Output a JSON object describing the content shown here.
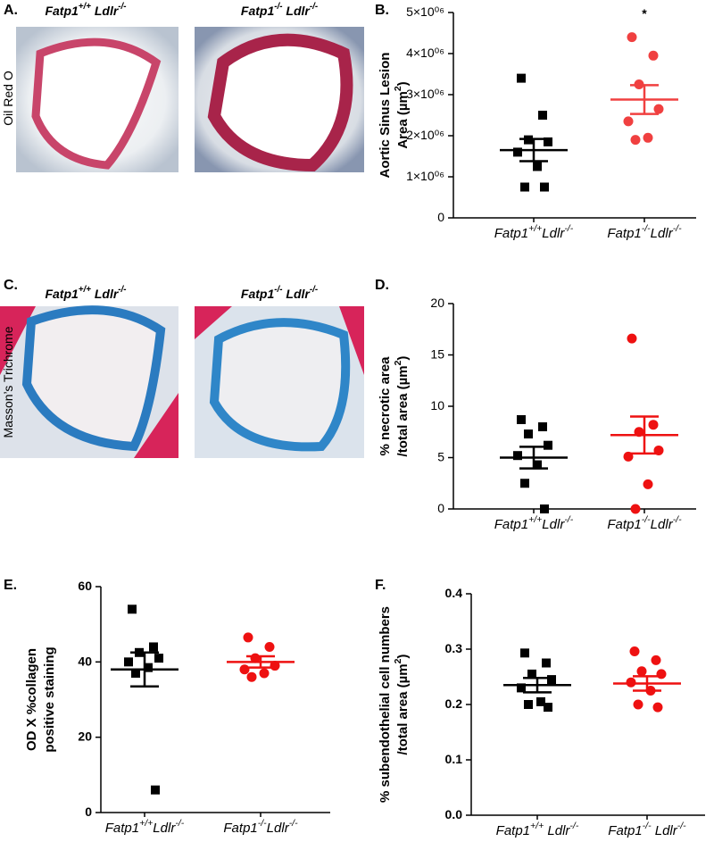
{
  "images": [
    {
      "panel": "A.",
      "side_label": "Oil Red O",
      "captions": [
        "Fatp1+/+ Ldlr-/-",
        "Fatp1-/- Ldlr-/-"
      ]
    },
    {
      "panel": "C.",
      "side_label": "Masson’s Trichrome",
      "captions": [
        "Fatp1+/+ Ldlr-/-",
        "Fatp1-/- Ldlr-/-"
      ]
    }
  ],
  "chart_data": [
    {
      "type": "dotplot",
      "panel": "B.",
      "ylabel": [
        "Aortic Sinus Lesion",
        "Area (µm2)"
      ],
      "annotation": "*",
      "categories": [
        "Fatp1+/+Ldlr-/-",
        "Fatp1-/-Ldlr-/-"
      ],
      "values": [
        [
          3400000,
          2500000,
          1900000,
          1850000,
          1600000,
          1250000,
          750000,
          750000
        ],
        [
          4400000,
          3950000,
          3250000,
          2650000,
          2350000,
          1950000,
          1900000
        ]
      ],
      "means": [
        1650000,
        2880000
      ],
      "sems": [
        270000,
        350000
      ],
      "colors": [
        "#000000",
        "#f04040"
      ],
      "markers": [
        "square",
        "circle"
      ],
      "ylim": [
        0,
        5000000
      ],
      "yticks": [
        0,
        {
          "value": 1000000,
          "label": "1×10⁰⁶"
        },
        {
          "value": 2000000,
          "label": "2×10⁰⁶"
        },
        {
          "value": 3000000,
          "label": "3×10⁰⁶"
        },
        {
          "value": 4000000,
          "label": "4×10⁰⁶"
        },
        {
          "value": 5000000,
          "label": "5×10⁰⁶"
        }
      ]
    },
    {
      "type": "dotplot",
      "panel": "D.",
      "ylabel": [
        "% necrotic area",
        "/total area (µm2)"
      ],
      "categories": [
        "Fatp1+/+Ldlr-/-",
        "Fatp1-/-Ldlr-/-"
      ],
      "values": [
        [
          8.7,
          8,
          7.3,
          6.2,
          5.2,
          4.3,
          2.5,
          0
        ],
        [
          16.6,
          8.2,
          7.5,
          5.7,
          5.1,
          2.4,
          0
        ]
      ],
      "means": [
        5,
        7.2
      ],
      "sems": [
        1.05,
        1.8
      ],
      "colors": [
        "#000000",
        "#ee1111"
      ],
      "markers": [
        "square",
        "circle"
      ],
      "ylim": [
        0,
        20
      ],
      "yticks": [
        0,
        5,
        10,
        15,
        20
      ]
    },
    {
      "type": "dotplot",
      "panel": "E.",
      "ylabel": [
        "OD X %collagen",
        "positive staining"
      ],
      "categories": [
        "Fatp1+/+Ldlr-/-",
        "Fatp1-/-Ldlr-/-"
      ],
      "values": [
        [
          54,
          44,
          42.5,
          41,
          40,
          38.5,
          37,
          6
        ],
        [
          46.5,
          44,
          41,
          39,
          38,
          37,
          36
        ]
      ],
      "means": [
        38,
        40
      ],
      "sems": [
        4.5,
        1.5
      ],
      "colors": [
        "#000000",
        "#ee1111"
      ],
      "markers": [
        "square",
        "circle"
      ],
      "ylim": [
        0,
        60
      ],
      "yticks": [
        0,
        20,
        40,
        60
      ]
    },
    {
      "type": "dotplot",
      "panel": "F.",
      "ylabel": [
        "% subendothelial cell numbers",
        "/total area (µm2)"
      ],
      "categories": [
        "Fatp1+/+ Ldlr-/-",
        "Fatp1-/- Ldlr-/-"
      ],
      "values": [
        [
          0.293,
          0.275,
          0.255,
          0.245,
          0.23,
          0.205,
          0.2,
          0.195
        ],
        [
          0.296,
          0.28,
          0.26,
          0.255,
          0.24,
          0.225,
          0.2,
          0.195
        ]
      ],
      "means": [
        0.235,
        0.238
      ],
      "sems": [
        0.013,
        0.013
      ],
      "colors": [
        "#000000",
        "#ee1111"
      ],
      "markers": [
        "square",
        "circle"
      ],
      "ylim": [
        0,
        0.4
      ],
      "yticks": [
        {
          "value": 0,
          "label": "0.0"
        },
        0.1,
        0.2,
        0.3,
        0.4
      ]
    }
  ]
}
